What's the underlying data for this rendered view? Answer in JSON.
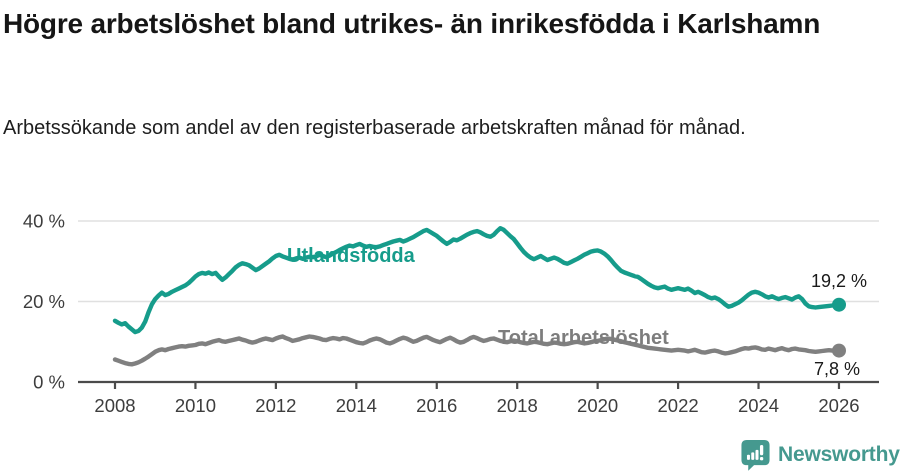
{
  "title": "Högre arbetslöshet bland utrikes- än inrikesfödda i Karlshamn",
  "subtitle": "Arbetssökande som andel av den registerbaserade arbetskraften månad för månad.",
  "footer": {
    "brand": "Newsworthy",
    "brand_color": "#45998f",
    "logo_icon": "bar-chart-speech-bubble-icon"
  },
  "chart_data": {
    "type": "line",
    "title": "Högre arbetslöshet bland utrikes- än inrikesfödda i Karlshamn",
    "subtitle": "Arbetssökande som andel av den registerbaserade arbetskraften månad för månad.",
    "unit": "%",
    "frequency": "monthly",
    "x_start_year": 2008,
    "x_end_year": 2026,
    "ylim": [
      0,
      40
    ],
    "grid": "horizontal",
    "legend": "inline-labels",
    "x_ticks": [
      {
        "v": 2008,
        "label": "2008"
      },
      {
        "v": 2010,
        "label": "2010"
      },
      {
        "v": 2012,
        "label": "2012"
      },
      {
        "v": 2014,
        "label": "2014"
      },
      {
        "v": 2016,
        "label": "2016"
      },
      {
        "v": 2018,
        "label": "2018"
      },
      {
        "v": 2020,
        "label": "2020"
      },
      {
        "v": 2022,
        "label": "2022"
      },
      {
        "v": 2024,
        "label": "2024"
      },
      {
        "v": 2026,
        "label": "2026"
      }
    ],
    "y_ticks": [
      {
        "v": 0,
        "label": "0 %"
      },
      {
        "v": 20,
        "label": "20 %"
      },
      {
        "v": 40,
        "label": "40 %"
      }
    ],
    "series": [
      {
        "name": "Utlandsfödda",
        "color": "#169c8b",
        "end_label": "19,2 %",
        "end_value": 19.2,
        "values": [
          15.2,
          14.7,
          14.3,
          14.6,
          13.8,
          13.1,
          12.4,
          12.7,
          13.5,
          15.0,
          17.3,
          19.3,
          20.6,
          21.5,
          22.2,
          21.6,
          21.9,
          22.4,
          22.8,
          23.2,
          23.6,
          24.0,
          24.6,
          25.4,
          26.2,
          26.8,
          27.1,
          26.9,
          27.2,
          26.8,
          27.1,
          26.2,
          25.4,
          26.0,
          26.8,
          27.6,
          28.5,
          29.1,
          29.5,
          29.3,
          29.0,
          28.4,
          27.8,
          28.2,
          28.8,
          29.4,
          30.0,
          30.7,
          31.3,
          31.6,
          31.2,
          30.9,
          30.6,
          30.4,
          30.7,
          30.9,
          30.6,
          30.9,
          31.1,
          31.0,
          31.2,
          31.6,
          31.3,
          31.0,
          31.4,
          31.9,
          32.3,
          32.8,
          33.2,
          33.6,
          33.9,
          33.7,
          34.0,
          34.3,
          33.9,
          33.6,
          33.8,
          33.6,
          33.5,
          33.7,
          34.0,
          34.3,
          34.6,
          34.9,
          35.1,
          35.3,
          34.9,
          35.2,
          35.6,
          36.0,
          36.5,
          37.0,
          37.5,
          37.8,
          37.3,
          36.8,
          36.3,
          35.6,
          34.9,
          34.3,
          34.8,
          35.4,
          35.2,
          35.6,
          36.1,
          36.6,
          37.0,
          37.3,
          37.5,
          37.2,
          36.7,
          36.3,
          36.1,
          36.6,
          37.5,
          38.2,
          37.8,
          37.0,
          36.2,
          35.5,
          34.4,
          33.3,
          32.3,
          31.5,
          30.9,
          30.5,
          30.9,
          31.3,
          30.8,
          30.3,
          30.6,
          30.9,
          30.6,
          30.1,
          29.6,
          29.4,
          29.8,
          30.2,
          30.6,
          31.1,
          31.6,
          32.0,
          32.4,
          32.6,
          32.7,
          32.4,
          31.9,
          31.2,
          30.3,
          29.3,
          28.4,
          27.6,
          27.2,
          26.9,
          26.6,
          26.3,
          26.1,
          25.6,
          25.0,
          24.4,
          23.9,
          23.5,
          23.3,
          23.5,
          23.7,
          23.2,
          22.9,
          23.1,
          23.3,
          23.1,
          22.9,
          23.2,
          22.7,
          22.1,
          22.4,
          22.0,
          21.6,
          21.1,
          20.8,
          21.0,
          20.6,
          20.0,
          19.3,
          18.7,
          18.9,
          19.3,
          19.7,
          20.3,
          21.0,
          21.7,
          22.2,
          22.4,
          22.2,
          21.8,
          21.3,
          21.0,
          21.3,
          20.9,
          20.6,
          20.9,
          21.1,
          20.8,
          20.5,
          21.0,
          21.3,
          20.6,
          19.5,
          18.8,
          18.6,
          18.5,
          18.6,
          18.7,
          18.8,
          18.9,
          19.0,
          19.1,
          19.2
        ]
      },
      {
        "name": "Total arbetslöshet",
        "color": "#808080",
        "end_label": "7,8 %",
        "end_value": 7.8,
        "values": [
          5.6,
          5.3,
          5.0,
          4.7,
          4.5,
          4.4,
          4.6,
          4.9,
          5.3,
          5.8,
          6.3,
          6.9,
          7.5,
          7.9,
          8.1,
          7.9,
          8.2,
          8.4,
          8.6,
          8.8,
          8.9,
          8.8,
          9.0,
          9.1,
          9.2,
          9.5,
          9.6,
          9.4,
          9.7,
          10.0,
          10.2,
          10.4,
          10.1,
          10.0,
          10.2,
          10.4,
          10.6,
          10.8,
          10.5,
          10.3,
          10.0,
          9.8,
          10.0,
          10.3,
          10.6,
          10.8,
          10.6,
          10.4,
          10.8,
          11.1,
          11.3,
          10.9,
          10.6,
          10.2,
          10.4,
          10.6,
          10.9,
          11.1,
          11.3,
          11.2,
          11.0,
          10.8,
          10.5,
          10.4,
          10.7,
          10.9,
          10.8,
          10.6,
          10.9,
          10.8,
          10.5,
          10.2,
          9.9,
          9.7,
          9.6,
          9.9,
          10.3,
          10.6,
          10.8,
          10.6,
          10.2,
          9.8,
          9.6,
          9.9,
          10.3,
          10.7,
          11.0,
          10.8,
          10.4,
          10.0,
          10.2,
          10.6,
          11.0,
          11.2,
          10.8,
          10.4,
          10.1,
          9.9,
          10.3,
          10.7,
          11.0,
          10.6,
          10.1,
          9.8,
          10.0,
          10.4,
          10.9,
          11.2,
          10.9,
          10.5,
          10.2,
          10.4,
          10.7,
          10.8,
          10.5,
          10.2,
          10.0,
          9.9,
          10.1,
          10.3,
          10.1,
          9.9,
          9.7,
          9.6,
          9.8,
          10.0,
          9.9,
          9.7,
          9.5,
          9.4,
          9.6,
          9.8,
          9.7,
          9.5,
          9.4,
          9.5,
          9.7,
          9.9,
          10.0,
          9.8,
          9.6,
          9.7,
          9.9,
          10.1,
          10.2,
          10.4,
          10.6,
          10.8,
          10.7,
          10.5,
          10.3,
          10.1,
          9.9,
          9.7,
          9.5,
          9.3,
          9.1,
          8.9,
          8.7,
          8.5,
          8.4,
          8.3,
          8.2,
          8.1,
          8.0,
          7.9,
          7.8,
          7.9,
          8.0,
          7.9,
          7.8,
          7.6,
          7.8,
          8.0,
          7.7,
          7.4,
          7.3,
          7.5,
          7.7,
          7.8,
          7.6,
          7.3,
          7.1,
          7.2,
          7.4,
          7.6,
          7.9,
          8.2,
          8.4,
          8.3,
          8.5,
          8.6,
          8.4,
          8.1,
          8.0,
          8.3,
          8.1,
          7.9,
          8.2,
          8.4,
          8.1,
          7.9,
          8.2,
          8.3,
          8.1,
          8.0,
          7.9,
          7.7,
          7.6,
          7.5,
          7.6,
          7.7,
          7.8,
          7.9,
          7.8,
          7.8,
          7.8
        ]
      }
    ],
    "style": {
      "grid_color": "#e0e0e0",
      "axis_color": "#4b4b4b",
      "tick_label_color": "#3d3d3d"
    }
  }
}
